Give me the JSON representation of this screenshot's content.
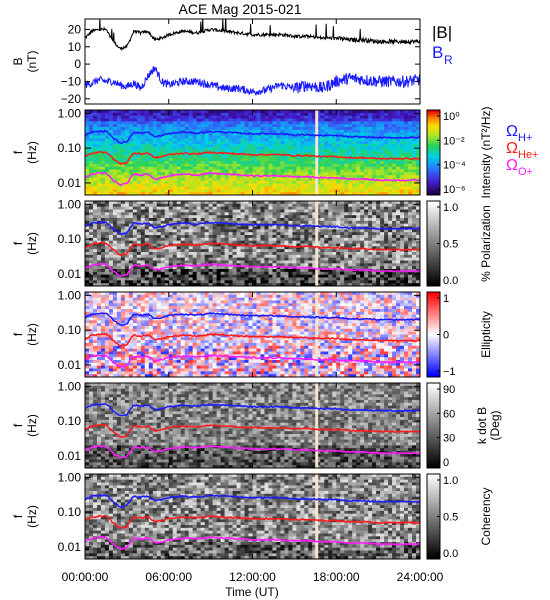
{
  "title": "ACE Mag 2015-021",
  "colors": {
    "B_total": "#000000",
    "B_R": "#1a1aff",
    "H_plus": "#1a1aff",
    "He_plus": "#ff1a1a",
    "O_plus": "#ff1aff"
  },
  "legend": {
    "B_total": "|B|",
    "B_R_main": "B",
    "B_R_sub": "R",
    "H_main": "Ω",
    "H_sub": "H+",
    "He_main": "Ω",
    "He_sub": "He+",
    "O_main": "Ω",
    "O_sub": "O+"
  },
  "x_axis": {
    "label": "Time (UT)",
    "range_hours": [
      0,
      24
    ],
    "tick_labels": [
      "00:00:00",
      "06:00:00",
      "12:00:00",
      "18:00:00",
      "24:00:00"
    ]
  },
  "chart_data": [
    {
      "panel": "magnetic-field",
      "type": "line",
      "ylabel": "B (nT)",
      "ylabel_main": "B",
      "ylabel_unit": "(nT)",
      "ylim": [
        -23,
        26
      ],
      "y_ticks": [
        "20",
        "10",
        "0",
        "−10",
        "−20"
      ],
      "series": [
        {
          "name": "|B|",
          "color": "#000000",
          "x": [
            0,
            0.5,
            1,
            1.5,
            2,
            2.5,
            3,
            3.5,
            4,
            4.5,
            5,
            5.5,
            6,
            7,
            8,
            9,
            10,
            11,
            12,
            13,
            14,
            15,
            16,
            17,
            18,
            19,
            20,
            21,
            22,
            23,
            24
          ],
          "values": [
            15,
            19,
            20,
            20,
            13,
            9,
            10,
            19,
            18,
            19,
            14,
            15,
            17,
            19,
            18,
            20,
            19,
            18,
            17,
            17,
            17,
            16,
            16,
            15,
            15,
            14,
            14,
            13,
            13,
            13,
            13
          ]
        },
        {
          "name": "B_R",
          "color": "#1a1aff",
          "x": [
            0,
            0.5,
            1,
            1.5,
            2,
            2.5,
            3,
            3.5,
            4,
            4.5,
            5,
            5.5,
            6,
            7,
            8,
            9,
            10,
            11,
            12,
            13,
            14,
            15,
            16,
            17,
            18,
            19,
            20,
            21,
            22,
            23,
            24
          ],
          "values": [
            -12,
            -11,
            -9,
            -10,
            -10,
            -12,
            -13,
            -11,
            -14,
            -7,
            -2,
            -10,
            -12,
            -10,
            -10,
            -12,
            -14,
            -14,
            -16,
            -15,
            -12,
            -14,
            -12,
            -14,
            -10,
            -8,
            -9,
            -10,
            -10,
            -10,
            -9
          ]
        }
      ]
    },
    {
      "panel": "intensity",
      "type": "heatmap",
      "ylabel_main": "f",
      "ylabel_unit": "(Hz)",
      "y_scale": "log",
      "y_ticks": [
        "1.00",
        "0.10",
        "0.01"
      ],
      "colorbar": {
        "label": "Intensity (nT²/Hz)",
        "ticks": [
          "10⁰",
          "10⁻²",
          "10⁻⁴",
          "10⁻⁶"
        ],
        "colormap": "rainbow"
      }
    },
    {
      "panel": "polarization",
      "type": "heatmap",
      "ylabel_main": "f",
      "ylabel_unit": "(Hz)",
      "y_scale": "log",
      "y_ticks": [
        "1.00",
        "0.10",
        "0.01"
      ],
      "colorbar": {
        "label": "% Polarization",
        "ticks": [
          "1.0",
          "0.5",
          "0.0"
        ],
        "colormap": "grayscale"
      }
    },
    {
      "panel": "ellipticity",
      "type": "heatmap",
      "ylabel_main": "f",
      "ylabel_unit": "(Hz)",
      "y_scale": "log",
      "y_ticks": [
        "1.00",
        "0.10",
        "0.01"
      ],
      "colorbar": {
        "label": "Ellipticity",
        "ticks": [
          "1",
          "0",
          "−1"
        ],
        "colormap": "blue-white-red"
      }
    },
    {
      "panel": "wave-normal-angle",
      "type": "heatmap",
      "ylabel_main": "f",
      "ylabel_unit": "(Hz)",
      "y_scale": "log",
      "y_ticks": [
        "1.00",
        "0.10",
        "0.01"
      ],
      "colorbar": {
        "label": "k dot B (Deg)",
        "label_line1": "k dot B",
        "label_line2": "(Deg)",
        "ticks": [
          "90",
          "60",
          "30",
          "0"
        ],
        "colormap": "grayscale"
      }
    },
    {
      "panel": "coherency",
      "type": "heatmap",
      "ylabel_main": "f",
      "ylabel_unit": "(Hz)",
      "y_scale": "log",
      "y_ticks": [
        "1.00",
        "0.10",
        "0.01"
      ],
      "colorbar": {
        "label": "Coherency",
        "ticks": [
          "1.0",
          "0.5",
          "0.0"
        ],
        "colormap": "grayscale"
      }
    }
  ],
  "gyrofrequency_lines": {
    "x_hours": [
      0,
      0.5,
      1,
      1.5,
      2,
      2.5,
      3,
      3.5,
      4,
      4.5,
      5,
      5.5,
      6,
      7,
      8,
      9,
      10,
      11,
      12,
      13,
      14,
      15,
      16,
      17,
      18,
      19,
      20,
      21,
      22,
      23,
      24
    ],
    "H_plus_hz": [
      0.23,
      0.29,
      0.3,
      0.31,
      0.2,
      0.14,
      0.15,
      0.29,
      0.27,
      0.29,
      0.21,
      0.23,
      0.26,
      0.29,
      0.27,
      0.3,
      0.29,
      0.27,
      0.26,
      0.26,
      0.26,
      0.24,
      0.24,
      0.23,
      0.23,
      0.21,
      0.21,
      0.2,
      0.2,
      0.2,
      0.2
    ],
    "He_plus_hz": [
      0.057,
      0.072,
      0.076,
      0.078,
      0.05,
      0.035,
      0.038,
      0.072,
      0.068,
      0.072,
      0.053,
      0.057,
      0.065,
      0.072,
      0.068,
      0.076,
      0.072,
      0.068,
      0.065,
      0.065,
      0.065,
      0.061,
      0.061,
      0.057,
      0.057,
      0.053,
      0.053,
      0.05,
      0.05,
      0.05,
      0.05
    ],
    "O_plus_hz": [
      0.014,
      0.018,
      0.019,
      0.019,
      0.012,
      0.0088,
      0.0095,
      0.018,
      0.017,
      0.018,
      0.013,
      0.014,
      0.016,
      0.018,
      0.017,
      0.019,
      0.018,
      0.017,
      0.016,
      0.016,
      0.016,
      0.015,
      0.015,
      0.014,
      0.014,
      0.013,
      0.013,
      0.012,
      0.012,
      0.012,
      0.012
    ]
  },
  "data_gap_hour": 16.6
}
